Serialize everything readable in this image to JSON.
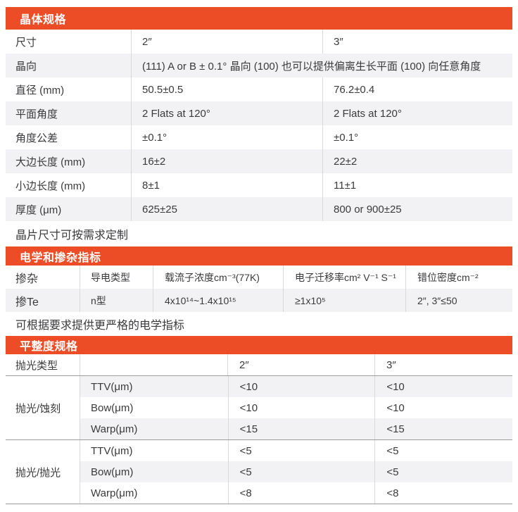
{
  "colors": {
    "accent": "#ed4d26",
    "stripe": "#f2f2f4",
    "divider": "#d9d9db",
    "heavy_line": "#9c9c9c",
    "text": "#3a3a3c"
  },
  "crystal": {
    "title": "晶体规格",
    "rows": [
      {
        "label": "尺寸",
        "v2": "2″",
        "v3": "3″"
      },
      {
        "label": "晶向",
        "merged": "(111) A or B ± 0.1° 晶向 (100) 也可以提供偏离生长平面 (100) 向任意角度"
      },
      {
        "label": "直径 (mm)",
        "v2": "50.5±0.5",
        "v3": "76.2±0.4"
      },
      {
        "label": "平面角度",
        "v2": "2 Flats at 120°",
        "v3": "2 Flats at 120°"
      },
      {
        "label": "角度公差",
        "v2": "±0.1°",
        "v3": "±0.1°"
      },
      {
        "label": "大边长度 (mm)",
        "v2": "16±2",
        "v3": "22±2"
      },
      {
        "label": "小边长度 (mm)",
        "v2": "8±1",
        "v3": "11±1"
      },
      {
        "label": "厚度 (μm)",
        "v2": "625±25",
        "v3": "800 or 900±25"
      }
    ],
    "note": "晶片尺寸可按需求定制"
  },
  "electrical": {
    "title": "电学和掺杂指标",
    "headers": [
      "掺杂",
      "导电类型",
      "载流子浓度cm⁻³(77K)",
      "电子迁移率cm² V⁻¹ S⁻¹",
      "错位密度cm⁻²"
    ],
    "row": [
      "掺Te",
      "n型",
      "4x10¹⁴~1.4x10¹⁵",
      "≥1x10⁵",
      "2″, 3″≤50"
    ],
    "note": "可根据要求提供更严格的电学指标"
  },
  "flatness": {
    "title": "平整度规格",
    "header": {
      "col1": "抛光类型",
      "col2": "",
      "col3": "2″",
      "col4": "3″"
    },
    "groups": [
      {
        "label": "抛光/蚀刻",
        "rows": [
          {
            "param": "TTV(μm)",
            "v2": "<10",
            "v3": "<10"
          },
          {
            "param": "Bow(μm)",
            "v2": "<10",
            "v3": "<10"
          },
          {
            "param": "Warp(μm)",
            "v2": "<15",
            "v3": "<15"
          }
        ]
      },
      {
        "label": "抛光/抛光",
        "rows": [
          {
            "param": "TTV(μm)",
            "v2": "<5",
            "v3": "<5"
          },
          {
            "param": "Bow(μm)",
            "v2": "<5",
            "v3": "<5"
          },
          {
            "param": "Warp(μm)",
            "v2": "<8",
            "v3": "<8"
          }
        ]
      }
    ]
  }
}
